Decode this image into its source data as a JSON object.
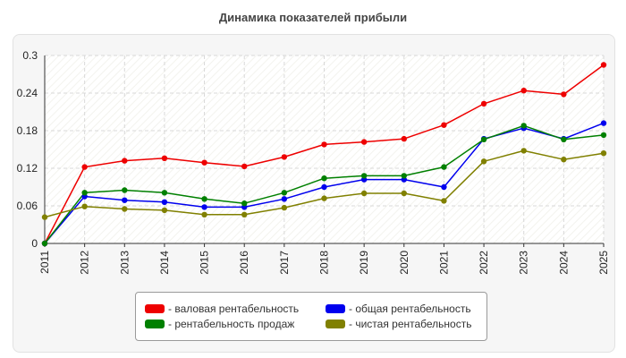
{
  "chart_data": {
    "type": "line",
    "title": "Динамика показателей прибыли",
    "x": [
      "2011",
      "2012",
      "2013",
      "2014",
      "2015",
      "2016",
      "2017",
      "2018",
      "2019",
      "2020",
      "2021",
      "2022",
      "2023",
      "2024",
      "2025"
    ],
    "ylim": [
      0,
      0.3
    ],
    "yticks": [
      "0",
      "0.06",
      "0.12",
      "0.18",
      "0.24",
      "0.3"
    ],
    "grid": true,
    "legend_position": "bottom",
    "series": [
      {
        "name": "- валовая рентабельность",
        "color": "#ee0000",
        "values": [
          0,
          0.122,
          0.132,
          0.136,
          0.129,
          0.123,
          0.138,
          0.158,
          0.162,
          0.167,
          0.189,
          0.223,
          0.244,
          0.238,
          0.285
        ]
      },
      {
        "name": "- общая рентабельность",
        "color": "#0000ee",
        "values": [
          0,
          0.075,
          0.069,
          0.066,
          0.058,
          0.058,
          0.071,
          0.09,
          0.102,
          0.102,
          0.09,
          0.167,
          0.184,
          0.167,
          0.192
        ]
      },
      {
        "name": "- рентабельность продаж",
        "color": "#008000",
        "values": [
          0,
          0.081,
          0.085,
          0.081,
          0.071,
          0.064,
          0.081,
          0.104,
          0.108,
          0.108,
          0.122,
          0.166,
          0.188,
          0.166,
          0.173
        ]
      },
      {
        "name": "- чистая рентабельность",
        "color": "#808000",
        "values": [
          0.042,
          0.059,
          0.055,
          0.053,
          0.046,
          0.046,
          0.057,
          0.072,
          0.08,
          0.08,
          0.068,
          0.131,
          0.148,
          0.134,
          0.144
        ]
      }
    ]
  }
}
